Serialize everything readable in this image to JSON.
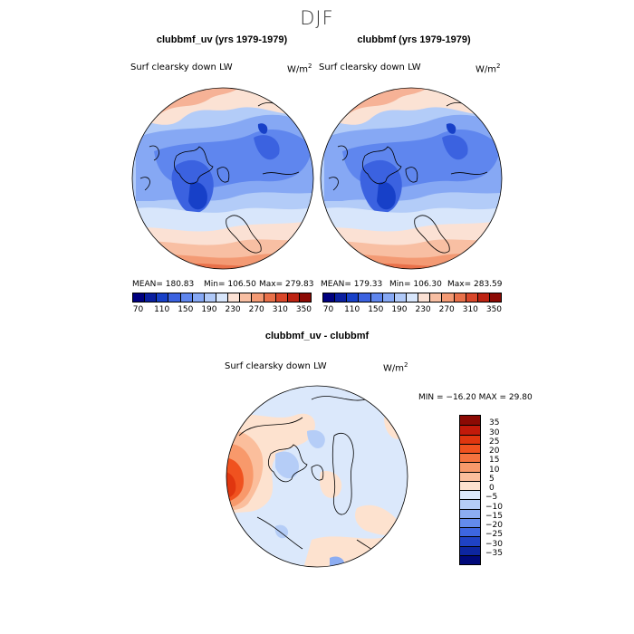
{
  "figure": {
    "title": "DJF"
  },
  "panels": [
    {
      "title": "clubbmf_uv (yrs 1979-1979)",
      "variable": "Surf clearsky down LW",
      "units_base": "W/m",
      "units_exp": "2",
      "mean_text": "MEAN= 180.83",
      "min_text": "Min= 106.50",
      "max_text": "Max= 279.83"
    },
    {
      "title": "clubbmf (yrs 1979-1979)",
      "variable": "Surf clearsky down LW",
      "units_base": "W/m",
      "units_exp": "2",
      "mean_text": "MEAN= 179.33",
      "min_text": "Min= 106.30",
      "max_text": "Max= 283.59"
    },
    {
      "title": "clubbmf_uv - clubbmf",
      "variable": "Surf clearsky down LW",
      "units_base": "W/m",
      "units_exp": "2",
      "minmax_text": "MIN = −16.20  MAX =   29.80"
    }
  ],
  "abs_colorbar": {
    "labels": [
      "70",
      "110",
      "150",
      "190",
      "230",
      "270",
      "310",
      "350"
    ],
    "colors": [
      "#00007f",
      "#0a1fa0",
      "#1740c8",
      "#3b62e0",
      "#5f86ee",
      "#86a8f4",
      "#b0c9f8",
      "#d8e6fb",
      "#fbe1d4",
      "#f8bfa3",
      "#f39a74",
      "#e9714a",
      "#d9472a",
      "#bd2312",
      "#8c0a04"
    ]
  },
  "diff_colorbar": {
    "labels": [
      "35",
      "30",
      "25",
      "20",
      "15",
      "10",
      "5",
      "0",
      "−5",
      "−10",
      "−15",
      "−20",
      "−25",
      "−30",
      "−35"
    ],
    "colors": [
      "#8c0a04",
      "#c21a0a",
      "#e0360f",
      "#f0521f",
      "#f5733f",
      "#f8996b",
      "#fbbe9c",
      "#fde2cf",
      "#dbe8fb",
      "#b5cdf7",
      "#8cadf2",
      "#638bec",
      "#3d66e0",
      "#1f42c4",
      "#0d26a0",
      "#00097a"
    ]
  }
}
